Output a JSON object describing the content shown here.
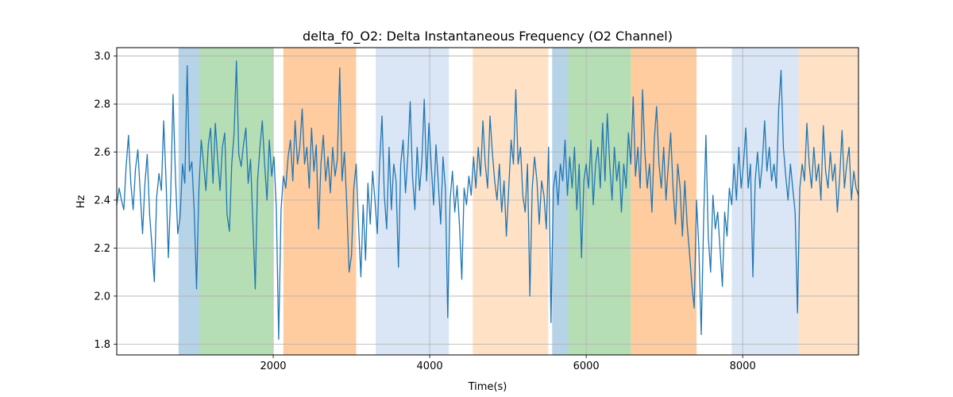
{
  "chart_data": {
    "type": "line",
    "title": "delta_f0_O2: Delta Instantaneous Frequency (O2 Channel)",
    "xlabel": "Time(s)",
    "ylabel": "Hz",
    "xlim": [
      0,
      9480
    ],
    "ylim": [
      1.755,
      3.035
    ],
    "xticks": [
      2000,
      4000,
      6000,
      8000
    ],
    "yticks": [
      1.8,
      2.0,
      2.2,
      2.4,
      2.6,
      2.8,
      3.0
    ],
    "grid": true,
    "legend": "none",
    "line_color": "#1f77b4",
    "grid_color": "#b0b0b0",
    "spine_color": "#000000",
    "background_color": "#ffffff",
    "bands": [
      {
        "start": 790,
        "end": 1060,
        "color": "rgba(31,119,180,0.32)",
        "color_name": "blue"
      },
      {
        "start": 1060,
        "end": 1995,
        "color": "rgba(44,160,44,0.35)",
        "color_name": "green"
      },
      {
        "start": 2130,
        "end": 3060,
        "color": "rgba(255,127,14,0.40)",
        "color_name": "orange"
      },
      {
        "start": 3310,
        "end": 4245,
        "color": "rgba(174,199,232,0.45)",
        "color_name": "light-blue"
      },
      {
        "start": 4550,
        "end": 5515,
        "color": "rgba(255,187,120,0.42)",
        "color_name": "light-orange"
      },
      {
        "start": 5565,
        "end": 5770,
        "color": "rgba(31,119,180,0.32)",
        "color_name": "blue"
      },
      {
        "start": 5770,
        "end": 6570,
        "color": "rgba(44,160,44,0.35)",
        "color_name": "green"
      },
      {
        "start": 6570,
        "end": 7410,
        "color": "rgba(255,127,14,0.40)",
        "color_name": "orange"
      },
      {
        "start": 7860,
        "end": 8715,
        "color": "rgba(174,199,232,0.45)",
        "color_name": "light-blue"
      },
      {
        "start": 8715,
        "end": 9480,
        "color": "rgba(255,187,120,0.42)",
        "color_name": "light-orange"
      }
    ],
    "x_start": 0,
    "x_step": 30,
    "series": [
      {
        "name": "delta_f0_O2",
        "values": [
          2.38,
          2.45,
          2.4,
          2.36,
          2.54,
          2.67,
          2.47,
          2.36,
          2.53,
          2.61,
          2.43,
          2.26,
          2.47,
          2.59,
          2.34,
          2.21,
          2.06,
          2.41,
          2.51,
          2.44,
          2.73,
          2.48,
          2.16,
          2.43,
          2.84,
          2.5,
          2.26,
          2.33,
          2.55,
          2.47,
          2.96,
          2.52,
          2.56,
          2.36,
          2.03,
          2.44,
          2.65,
          2.55,
          2.44,
          2.63,
          2.7,
          2.47,
          2.72,
          2.57,
          2.44,
          2.62,
          2.68,
          2.34,
          2.27,
          2.55,
          2.68,
          2.98,
          2.59,
          2.54,
          2.63,
          2.7,
          2.47,
          2.57,
          2.31,
          2.03,
          2.48,
          2.62,
          2.73,
          2.55,
          2.4,
          2.65,
          2.5,
          2.58,
          2.36,
          1.82,
          2.36,
          2.5,
          2.45,
          2.58,
          2.65,
          2.48,
          2.73,
          2.55,
          2.62,
          2.78,
          2.55,
          2.62,
          2.45,
          2.7,
          2.52,
          2.63,
          2.28,
          2.55,
          2.67,
          2.48,
          2.58,
          2.43,
          2.62,
          2.5,
          2.57,
          2.95,
          2.48,
          2.6,
          2.38,
          2.1,
          2.17,
          2.45,
          2.55,
          2.3,
          2.08,
          2.38,
          2.15,
          2.47,
          2.3,
          2.52,
          2.4,
          2.26,
          2.55,
          2.75,
          2.42,
          2.28,
          2.62,
          2.36,
          2.55,
          2.48,
          2.12,
          2.55,
          2.65,
          2.43,
          2.58,
          2.81,
          2.5,
          2.36,
          2.62,
          2.44,
          2.56,
          2.82,
          2.48,
          2.72,
          2.54,
          2.38,
          2.63,
          2.47,
          2.3,
          2.58,
          2.45,
          1.91,
          2.4,
          2.52,
          2.35,
          2.46,
          2.3,
          2.07,
          2.45,
          2.38,
          2.5,
          2.42,
          2.58,
          2.45,
          2.62,
          2.5,
          2.73,
          2.55,
          2.45,
          2.75,
          2.6,
          2.48,
          2.4,
          2.55,
          2.35,
          2.48,
          2.25,
          2.45,
          2.65,
          2.55,
          2.86,
          2.55,
          2.62,
          2.42,
          2.35,
          2.55,
          2.0,
          2.45,
          2.58,
          2.48,
          2.3,
          2.48,
          2.42,
          2.28,
          2.62,
          1.89,
          2.45,
          2.52,
          2.38,
          2.55,
          2.48,
          2.65,
          2.42,
          2.58,
          2.45,
          2.62,
          2.36,
          2.55,
          2.16,
          2.48,
          2.55,
          2.45,
          2.65,
          2.38,
          2.55,
          2.62,
          2.45,
          2.72,
          2.48,
          2.76,
          2.55,
          2.4,
          2.62,
          2.48,
          2.56,
          2.35,
          2.55,
          2.45,
          2.68,
          2.55,
          2.83,
          2.5,
          2.62,
          2.45,
          2.86,
          2.6,
          2.45,
          2.55,
          2.35,
          2.65,
          2.79,
          2.55,
          2.45,
          2.62,
          2.4,
          2.55,
          2.68,
          2.45,
          2.3,
          2.55,
          2.45,
          2.25,
          2.48,
          2.3,
          2.18,
          2.05,
          1.95,
          2.4,
          2.2,
          1.84,
          2.3,
          2.67,
          2.25,
          2.1,
          2.42,
          2.28,
          2.35,
          2.2,
          2.04,
          2.35,
          2.25,
          2.45,
          2.38,
          2.55,
          2.4,
          2.62,
          2.45,
          2.55,
          2.7,
          2.45,
          2.55,
          2.08,
          2.48,
          2.6,
          2.45,
          2.55,
          2.73,
          2.52,
          2.62,
          2.48,
          2.55,
          2.45,
          2.78,
          2.94,
          2.62,
          2.5,
          2.4,
          2.55,
          2.45,
          2.35,
          1.93,
          2.45,
          2.55,
          2.48,
          2.72,
          2.55,
          2.45,
          2.62,
          2.48,
          2.55,
          2.4,
          2.71,
          2.52,
          2.45,
          2.6,
          2.48,
          2.55,
          2.35,
          2.5,
          2.69,
          2.45,
          2.55,
          2.62,
          2.4,
          2.52,
          2.45,
          2.42
        ]
      }
    ]
  }
}
